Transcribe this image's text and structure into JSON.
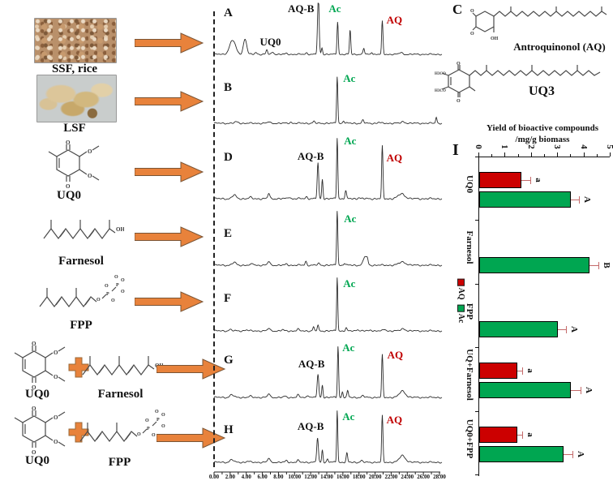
{
  "left_column": {
    "items": [
      {
        "label": "SSF, rice"
      },
      {
        "label": "LSF"
      },
      {
        "label": "UQ0"
      },
      {
        "label": "Farnesol"
      },
      {
        "label": "FPP"
      },
      {
        "label_a": "UQ0",
        "label_b": "Farnesol"
      },
      {
        "label_a": "UQ0",
        "label_b": "FPP"
      }
    ]
  },
  "panel_c": {
    "letter": "C",
    "aq_name": "Antroquinonol (AQ)",
    "uq3_name": "UQ3",
    "atoms": {
      "o": "O",
      "oh": "OH",
      "h3co": "H3CO",
      "p": "P"
    }
  },
  "colors": {
    "accent_orange": "#E8823B",
    "green": "#00A651",
    "red": "#C00000",
    "bar_red": "#CC0000",
    "bar_green": "#00A651",
    "trace": "#2B2B2B"
  },
  "chart_data": [
    {
      "type": "bar",
      "panel_letter": "I",
      "title": "Yield of bioactive compounds",
      "title_line2": "/mg/g biomass",
      "orientation": "bars run horizontally (figure rotated 90 degrees)",
      "value_axis_ticks": [
        0,
        1,
        2,
        3,
        4,
        5
      ],
      "value_range": [
        0,
        5
      ],
      "categories": [
        "UQ0",
        "Farnesol",
        "FPP",
        "UQ+Farnesol",
        "UQ0+FPP"
      ],
      "series": [
        {
          "name": "AQ",
          "color": "#CC0000",
          "values": [
            1.6,
            null,
            null,
            1.45,
            1.45
          ],
          "errors": [
            0.35,
            null,
            null,
            0.2,
            0.2
          ],
          "sig_letters": [
            "a",
            null,
            null,
            "a",
            "a"
          ]
        },
        {
          "name": "Ac",
          "color": "#00A651",
          "values": [
            3.5,
            4.2,
            3.0,
            3.5,
            3.2
          ],
          "errors": [
            0.3,
            0.35,
            0.3,
            0.35,
            0.35
          ],
          "sig_letters": [
            "A",
            "B",
            "A",
            "A",
            "A"
          ]
        }
      ],
      "legend": [
        {
          "label": "AQ",
          "color": "#CC0000"
        },
        {
          "label": "Ac",
          "color": "#00A651"
        }
      ]
    },
    {
      "type": "line",
      "subtype": "hplc-chromatograms",
      "x_range": [
        0,
        28
      ],
      "x_tick_labels": [
        "0.00",
        "2.00",
        "4.00",
        "6.00",
        "8.00",
        "10.00",
        "12.00",
        "14.00",
        "16.00",
        "18.00",
        "20.00",
        "22.00",
        "24.00",
        "26.00",
        "28.00"
      ],
      "panels": [
        {
          "letter": "A",
          "peaks": [
            [
              2.3,
              0.3,
              0.8
            ],
            [
              3.85,
              0.33,
              0.45
            ],
            [
              5.2,
              0.04,
              0.3
            ],
            [
              6.55,
              0.09,
              0.22
            ],
            [
              7.3,
              0.05,
              0.3
            ],
            [
              9.0,
              0.02,
              0.3
            ],
            [
              11.5,
              0.03,
              0.3
            ],
            [
              12.95,
              1.25,
              0.22
            ],
            [
              13.4,
              0.14,
              0.18
            ],
            [
              15.35,
              0.7,
              0.17
            ],
            [
              16.9,
              0.52,
              0.17
            ],
            [
              18.6,
              0.13,
              0.2
            ],
            [
              19.6,
              0.05,
              0.2
            ],
            [
              20.9,
              0.7,
              0.18
            ],
            [
              23.2,
              0.04,
              0.4
            ]
          ],
          "labels": [
            {
              "text": "UQ0",
              "color": "#111111",
              "u": 7.0,
              "t": 0.6
            },
            {
              "text": "AQ-B",
              "color": "#111111",
              "u": 10.8,
              "t": 0.02
            },
            {
              "text": "Ac",
              "color": "#00A651",
              "u": 15.0,
              "t": 0.02
            },
            {
              "text": "AQ",
              "color": "#C00000",
              "u": 22.4,
              "t": 0.22
            }
          ]
        },
        {
          "letter": "B",
          "peaks": [
            [
              2.8,
              0.025,
              0.5
            ],
            [
              6.8,
              0.03,
              0.3
            ],
            [
              9.5,
              0.02,
              0.3
            ],
            [
              12.4,
              0.035,
              0.25
            ],
            [
              15.3,
              0.9,
              0.16
            ],
            [
              16.1,
              0.05,
              0.2
            ],
            [
              18.5,
              0.06,
              0.25
            ],
            [
              20.5,
              0.02,
              0.3
            ],
            [
              23.5,
              0.03,
              0.5
            ],
            [
              27.6,
              0.12,
              0.18
            ]
          ],
          "labels": [
            {
              "text": "Ac",
              "color": "#00A651",
              "u": 16.8,
              "t": 0.12
            }
          ]
        },
        {
          "letter": "D",
          "peaks": [
            [
              2.5,
              0.06,
              0.5
            ],
            [
              4.5,
              0.02,
              0.4
            ],
            [
              6.8,
              0.09,
              0.25
            ],
            [
              9.3,
              0.03,
              0.3
            ],
            [
              11.5,
              0.03,
              0.3
            ],
            [
              12.9,
              0.58,
              0.2
            ],
            [
              13.45,
              0.32,
              0.17
            ],
            [
              15.3,
              1.0,
              0.16
            ],
            [
              16.35,
              0.13,
              0.2
            ],
            [
              18.0,
              0.02,
              0.3
            ],
            [
              20.9,
              0.85,
              0.18
            ],
            [
              23.3,
              0.08,
              0.9
            ]
          ],
          "labels": [
            {
              "text": "AQ-B",
              "color": "#111111",
              "u": 12.0,
              "t": 0.26
            },
            {
              "text": "Ac",
              "color": "#00A651",
              "u": 16.9,
              "t": 0.04
            },
            {
              "text": "AQ",
              "color": "#C00000",
              "u": 22.4,
              "t": 0.28
            }
          ]
        },
        {
          "letter": "E",
          "peaks": [
            [
              2.5,
              0.05,
              0.5
            ],
            [
              4.8,
              0.03,
              0.3
            ],
            [
              6.8,
              0.07,
              0.3
            ],
            [
              9.0,
              0.02,
              0.3
            ],
            [
              11.4,
              0.07,
              0.22
            ],
            [
              13.0,
              0.03,
              0.3
            ],
            [
              15.3,
              1.0,
              0.16
            ],
            [
              16.2,
              0.04,
              0.2
            ],
            [
              18.75,
              0.16,
              0.45
            ],
            [
              19.05,
              0.08,
              0.2
            ],
            [
              23.4,
              0.06,
              0.9
            ]
          ],
          "labels": [
            {
              "text": "Ac",
              "color": "#00A651",
              "u": 16.9,
              "t": 0.12
            }
          ]
        },
        {
          "letter": "F",
          "peaks": [
            [
              2.0,
              0.025,
              0.4
            ],
            [
              4.0,
              0.02,
              0.4
            ],
            [
              6.8,
              0.05,
              0.3
            ],
            [
              8.5,
              0.02,
              0.3
            ],
            [
              10.4,
              0.035,
              0.25
            ],
            [
              12.35,
              0.07,
              0.2
            ],
            [
              12.9,
              0.1,
              0.2
            ],
            [
              15.3,
              1.0,
              0.15
            ],
            [
              16.4,
              0.05,
              0.2
            ],
            [
              17.8,
              0.03,
              0.3
            ],
            [
              19.5,
              0.02,
              0.3
            ],
            [
              21.2,
              0.03,
              0.3
            ],
            [
              23.5,
              0.04,
              0.6
            ]
          ],
          "labels": [
            {
              "text": "Ac",
              "color": "#00A651",
              "u": 16.8,
              "t": 0.1
            }
          ]
        },
        {
          "letter": "G",
          "peaks": [
            [
              2.2,
              0.05,
              0.5
            ],
            [
              4.5,
              0.02,
              0.4
            ],
            [
              6.8,
              0.07,
              0.3
            ],
            [
              8.8,
              0.02,
              0.3
            ],
            [
              10.4,
              0.05,
              0.25
            ],
            [
              11.7,
              0.04,
              0.3
            ],
            [
              12.9,
              0.42,
              0.22
            ],
            [
              13.45,
              0.23,
              0.17
            ],
            [
              15.4,
              0.95,
              0.16
            ],
            [
              15.95,
              0.1,
              0.18
            ],
            [
              16.6,
              0.12,
              0.2
            ],
            [
              18.5,
              0.03,
              0.3
            ],
            [
              20.9,
              0.78,
              0.18
            ],
            [
              23.4,
              0.12,
              0.8
            ]
          ],
          "labels": [
            {
              "text": "AQ-B",
              "color": "#111111",
              "u": 12.1,
              "t": 0.32
            },
            {
              "text": "Ac",
              "color": "#00A651",
              "u": 16.7,
              "t": 0.06
            },
            {
              "text": "AQ",
              "color": "#C00000",
              "u": 22.5,
              "t": 0.18
            }
          ]
        },
        {
          "letter": "H",
          "peaks": [
            [
              2.2,
              0.05,
              0.5
            ],
            [
              4.2,
              0.02,
              0.4
            ],
            [
              6.8,
              0.08,
              0.3
            ],
            [
              9.0,
              0.03,
              0.3
            ],
            [
              10.4,
              0.04,
              0.25
            ],
            [
              12.85,
              0.46,
              0.22
            ],
            [
              13.45,
              0.24,
              0.17
            ],
            [
              14.1,
              0.06,
              0.2
            ],
            [
              15.3,
              1.0,
              0.15
            ],
            [
              16.5,
              0.17,
              0.2
            ],
            [
              18.3,
              0.03,
              0.3
            ],
            [
              20.9,
              0.88,
              0.18
            ],
            [
              23.4,
              0.13,
              0.8
            ]
          ],
          "labels": [
            {
              "text": "AQ-B",
              "color": "#111111",
              "u": 12.0,
              "t": 0.26
            },
            {
              "text": "Ac",
              "color": "#00A651",
              "u": 16.7,
              "t": 0.1
            },
            {
              "text": "AQ",
              "color": "#C00000",
              "u": 22.4,
              "t": 0.16
            }
          ]
        }
      ]
    }
  ]
}
